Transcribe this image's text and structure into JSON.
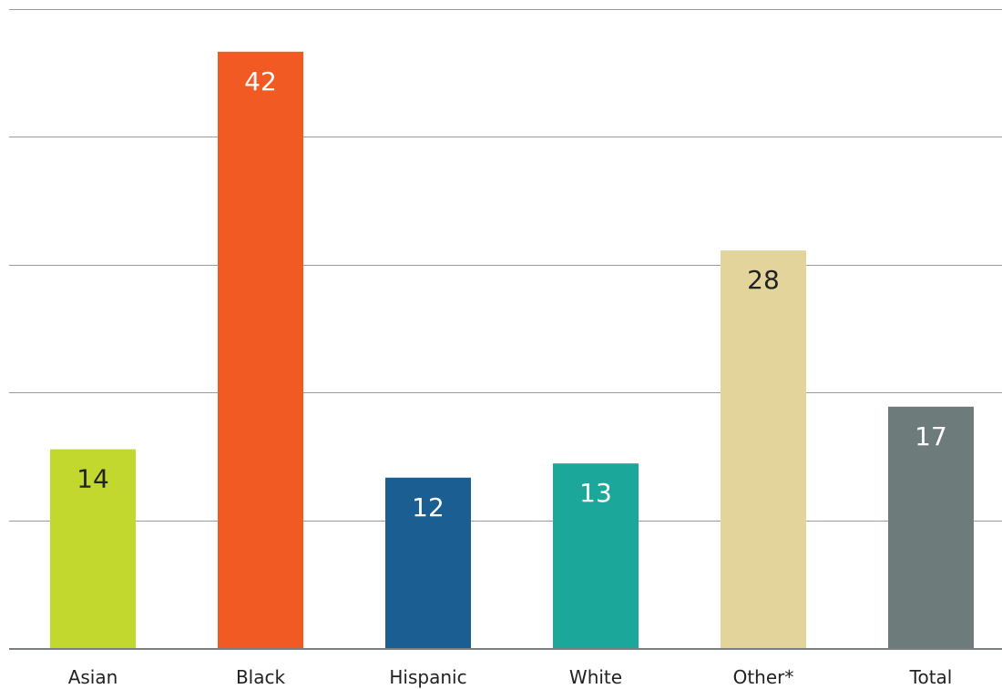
{
  "chart_data": {
    "type": "bar",
    "categories": [
      "Asian",
      "Black",
      "Hispanic",
      "White",
      "Other*",
      "Total"
    ],
    "values": [
      14,
      42,
      12,
      13,
      28,
      17
    ],
    "data_labels": [
      "14",
      "42",
      "12",
      "13",
      "28",
      "17"
    ],
    "colors": [
      "#c2d82f",
      "#f15a22",
      "#1b5e92",
      "#1ba89a",
      "#e2d49a",
      "#6e7b7b"
    ],
    "label_colors": [
      "#222222",
      "#ffffff",
      "#ffffff",
      "#ffffff",
      "#222222",
      "#ffffff"
    ],
    "ylim": [
      0,
      45
    ],
    "gridlines": [
      9,
      18,
      27,
      36,
      45
    ],
    "grid": true,
    "title": "",
    "xlabel": "",
    "ylabel": ""
  }
}
